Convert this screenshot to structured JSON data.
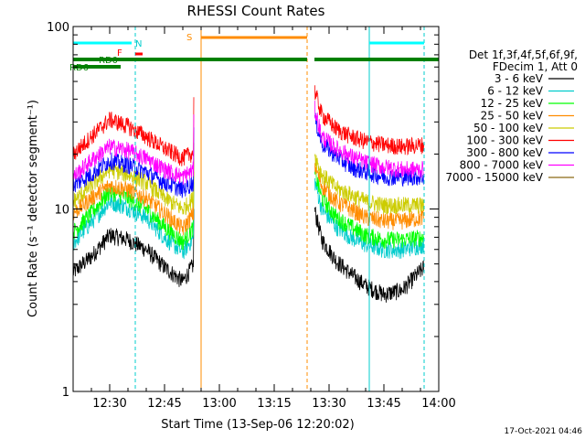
{
  "chart_data": {
    "type": "line",
    "title": "RHESSI Count Rates",
    "xlabel": "Start Time (13-Sep-06 12:20:02)",
    "ylabel": "Count Rate (s⁻¹ detector segment⁻¹)",
    "yscale": "log",
    "ylim": [
      1,
      100
    ],
    "xlim": [
      "12:20",
      "14:00"
    ],
    "x_ticks": [
      "12:30",
      "12:45",
      "13:00",
      "13:15",
      "13:30",
      "13:45",
      "14:00"
    ],
    "y_ticks": [
      "1",
      "10",
      "100"
    ],
    "footer_date": "17-Oct-2021 04:46",
    "legend": {
      "placement": "right",
      "header": [
        "Det 1f,3f,4f,5f,6f,9f,",
        "FDecim 1, Att 0"
      ]
    },
    "data_gaps": [
      [
        "12:53",
        "13:26"
      ]
    ],
    "series": [
      {
        "name": "3 - 6 keV",
        "color": "#000000",
        "x": [
          "12:20",
          "12:25",
          "12:30",
          "12:35",
          "12:40",
          "12:45",
          "12:50",
          "12:53",
          "13:26",
          "13:28",
          "13:32",
          "13:36",
          "13:40",
          "13:45",
          "13:50",
          "13:56"
        ],
        "values": [
          4.5,
          5.5,
          7.2,
          6.8,
          6.0,
          4.8,
          4.0,
          5.0,
          10.0,
          6.8,
          5.2,
          4.4,
          3.8,
          3.4,
          3.6,
          4.8
        ]
      },
      {
        "name": "6 - 12 keV",
        "color": "#00cccc",
        "x": [
          "12:20",
          "12:25",
          "12:30",
          "12:35",
          "12:40",
          "12:45",
          "12:50",
          "12:53",
          "13:26",
          "13:28",
          "13:32",
          "13:36",
          "13:40",
          "13:45",
          "13:50",
          "13:56"
        ],
        "values": [
          6.5,
          8.5,
          11.0,
          10.2,
          9.0,
          7.0,
          5.8,
          7.0,
          14.5,
          10.0,
          8.0,
          7.0,
          6.4,
          6.0,
          6.0,
          6.4
        ]
      },
      {
        "name": "12 - 25 keV",
        "color": "#00ff00",
        "x": [
          "12:20",
          "12:25",
          "12:30",
          "12:35",
          "12:40",
          "12:45",
          "12:50",
          "12:53",
          "13:26",
          "13:28",
          "13:32",
          "13:36",
          "13:40",
          "13:45",
          "13:50",
          "13:56"
        ],
        "values": [
          7.5,
          9.5,
          12.5,
          11.5,
          10.0,
          8.0,
          6.6,
          8.0,
          16.0,
          11.5,
          9.0,
          8.0,
          7.2,
          6.8,
          6.8,
          7.0
        ]
      },
      {
        "name": "25 - 50 keV",
        "color": "#ff8c00",
        "x": [
          "12:20",
          "12:25",
          "12:30",
          "12:35",
          "12:40",
          "12:45",
          "12:50",
          "12:53",
          "13:26",
          "13:28",
          "13:32",
          "13:36",
          "13:40",
          "13:45",
          "13:50",
          "13:56"
        ],
        "values": [
          9.5,
          11.5,
          13.5,
          12.8,
          11.5,
          9.5,
          7.8,
          9.5,
          17.5,
          13.5,
          11.0,
          10.0,
          9.0,
          8.6,
          8.6,
          9.0
        ]
      },
      {
        "name": "50 - 100 keV",
        "color": "#cccc00",
        "x": [
          "12:20",
          "12:25",
          "12:30",
          "12:35",
          "12:40",
          "12:45",
          "12:50",
          "12:53",
          "13:26",
          "13:28",
          "13:32",
          "13:36",
          "13:40",
          "13:45",
          "13:50",
          "13:56"
        ],
        "values": [
          11.0,
          13.5,
          16.5,
          15.5,
          14.0,
          11.5,
          10.0,
          11.5,
          20.0,
          15.5,
          13.0,
          12.0,
          11.0,
          10.5,
          10.5,
          10.5
        ]
      },
      {
        "name": "100 - 300 keV",
        "color": "#ff0000",
        "x": [
          "12:20",
          "12:25",
          "12:30",
          "12:35",
          "12:40",
          "12:45",
          "12:50",
          "12:53",
          "13:26",
          "13:28",
          "13:32",
          "13:36",
          "13:40",
          "13:45",
          "13:50",
          "13:56"
        ],
        "values": [
          20.0,
          25.0,
          31.0,
          28.5,
          25.0,
          21.5,
          19.0,
          20.5,
          45.0,
          33.0,
          27.5,
          25.0,
          23.5,
          22.5,
          22.0,
          22.5
        ]
      },
      {
        "name": "300 - 800 keV",
        "color": "#0000ff",
        "x": [
          "12:20",
          "12:25",
          "12:30",
          "12:35",
          "12:40",
          "12:45",
          "12:50",
          "12:53",
          "13:26",
          "13:28",
          "13:32",
          "13:36",
          "13:40",
          "13:45",
          "13:50",
          "13:56"
        ],
        "values": [
          13.5,
          15.5,
          18.5,
          17.5,
          16.0,
          14.0,
          12.8,
          14.0,
          32.0,
          23.0,
          19.5,
          17.0,
          16.0,
          15.0,
          15.0,
          15.0
        ]
      },
      {
        "name": "800 - 7000 keV",
        "color": "#ff00ff",
        "x": [
          "12:20",
          "12:25",
          "12:30",
          "12:35",
          "12:40",
          "12:45",
          "12:50",
          "12:53",
          "13:26",
          "13:28",
          "13:32",
          "13:36",
          "13:40",
          "13:45",
          "13:50",
          "13:56"
        ],
        "values": [
          15.0,
          18.5,
          22.0,
          21.0,
          19.0,
          16.5,
          15.0,
          16.5,
          36.0,
          25.0,
          21.5,
          19.5,
          18.0,
          17.0,
          16.5,
          16.5
        ]
      },
      {
        "name": "7000 - 15000 keV",
        "color": "#8b6914",
        "x": [],
        "values": []
      }
    ],
    "annotations": [
      {
        "label": "S",
        "color": "#ff8c00",
        "start": "12:55",
        "end": "13:24"
      },
      {
        "label": "F",
        "color": "#ff0000",
        "start": "12:37",
        "end": "12:39"
      },
      {
        "label": "N",
        "color": "#00cccc",
        "start": "12:37",
        "end": "12:37"
      },
      {
        "label": "RD0",
        "color": "#008000",
        "start": "12:35",
        "end": "13:56"
      },
      {
        "label": "RD6",
        "color": "#008000",
        "start": "12:24",
        "end": "12:33"
      }
    ]
  }
}
